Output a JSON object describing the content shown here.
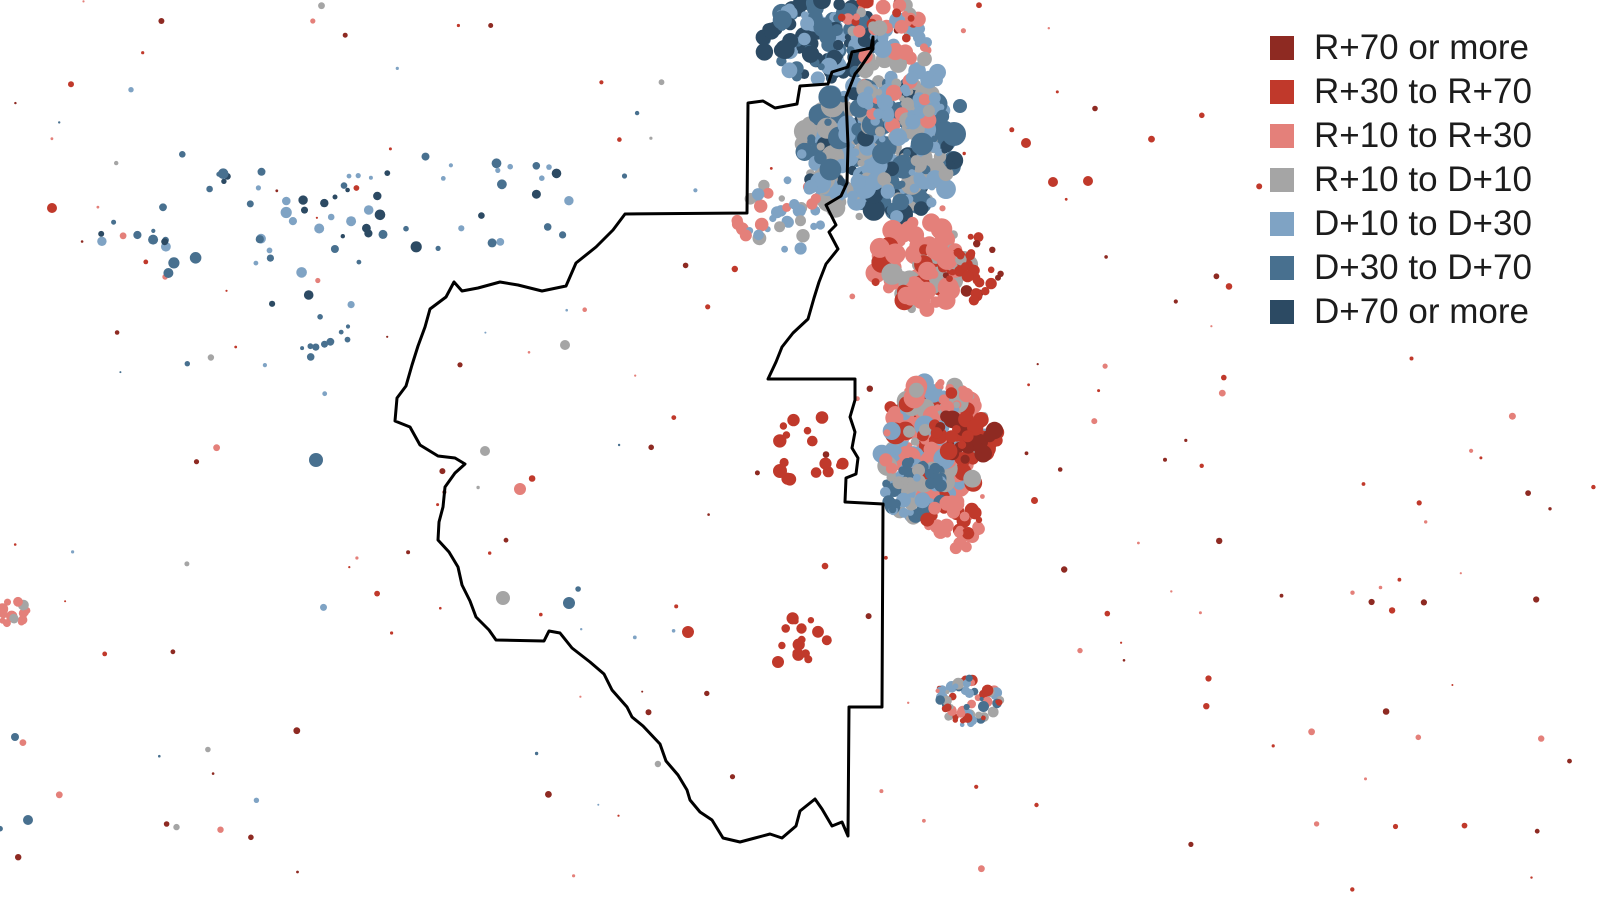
{
  "legend": {
    "items": [
      {
        "label": "R+70 or more",
        "color": "#8e2a22"
      },
      {
        "label": "R+30 to R+70",
        "color": "#c0392b"
      },
      {
        "label": "R+10 to R+30",
        "color": "#e4807a"
      },
      {
        "label": "R+10 to D+10",
        "color": "#a5a5a5"
      },
      {
        "label": "D+10 to D+30",
        "color": "#7fa3c4"
      },
      {
        "label": "D+30 to D+70",
        "color": "#48708f"
      },
      {
        "label": "D+70 or more",
        "color": "#2c4a63"
      }
    ]
  },
  "boundary_color": "#000000"
}
